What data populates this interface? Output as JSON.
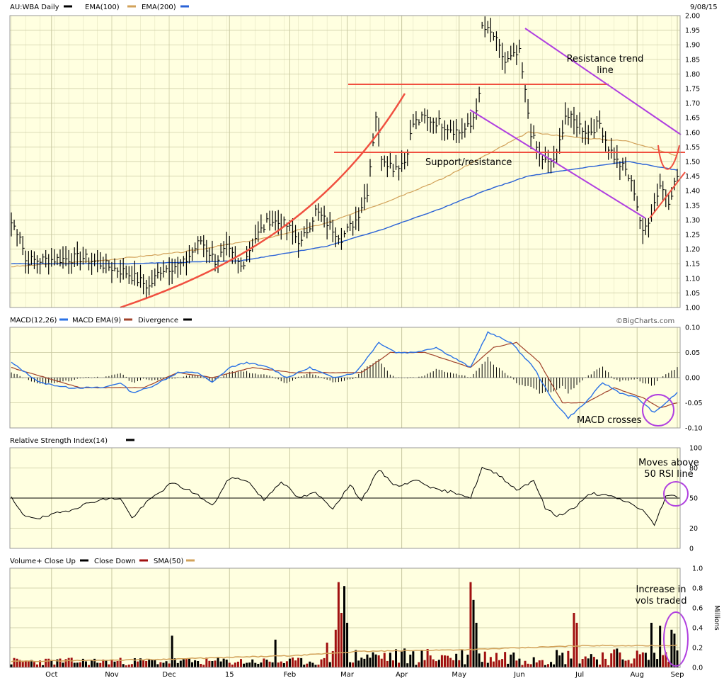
{
  "symbol_label": "AU:WBA Daily",
  "date_label": "9/08/15",
  "credit": "©BigCharts.com",
  "months": [
    "Oct",
    "Nov",
    "Dec",
    "15",
    "Feb",
    "Mar",
    "Apr",
    "May",
    "Jun",
    "Jul",
    "Aug",
    "Sep"
  ],
  "colors": {
    "panel_bg": "#ffffe0",
    "grid": "#c8c8a0",
    "price": "#000000",
    "ema100": "#d2a25a",
    "ema200": "#2a62d6",
    "macd": "#2a72e6",
    "macd_ema": "#a0422a",
    "vol_up": "#000000",
    "vol_down": "#a01010",
    "vol_sma": "#d2a25a",
    "annot_red": "#f05040",
    "annot_purple": "#b040e0"
  },
  "annotations": {
    "resistance": "Resistance trend line",
    "support": "Support/resistance",
    "macd": "MACD crosses",
    "rsi": "Moves above 50 RSI line",
    "volume": "Increase in vols traded"
  },
  "chart_data": [
    {
      "type": "line",
      "title": "AU:WBA Daily",
      "legend": [
        "AU:WBA Daily",
        "EMA(100)",
        "EMA(200)"
      ],
      "ylim": [
        1.0,
        2.0
      ],
      "y_ticks": [
        "2.00",
        "1.95",
        "1.90",
        "1.85",
        "1.80",
        "1.75",
        "1.70",
        "1.65",
        "1.60",
        "1.55",
        "1.50",
        "1.45",
        "1.40",
        "1.35",
        "1.30",
        "1.25",
        "1.20",
        "1.15",
        "1.10",
        "1.05",
        "1.00"
      ],
      "price_keypoints": [
        [
          0,
          1.29
        ],
        [
          3,
          1.25
        ],
        [
          5,
          1.16
        ],
        [
          25,
          1.17
        ],
        [
          40,
          1.12
        ],
        [
          48,
          1.07
        ],
        [
          52,
          1.13
        ],
        [
          60,
          1.15
        ],
        [
          66,
          1.23
        ],
        [
          71,
          1.16
        ],
        [
          75,
          1.2
        ],
        [
          80,
          1.14
        ],
        [
          85,
          1.24
        ],
        [
          90,
          1.3
        ],
        [
          96,
          1.28
        ],
        [
          101,
          1.22
        ],
        [
          106,
          1.33
        ],
        [
          111,
          1.28
        ],
        [
          115,
          1.24
        ],
        [
          120,
          1.3
        ],
        [
          124,
          1.4
        ],
        [
          127,
          1.66
        ],
        [
          129,
          1.52
        ],
        [
          133,
          1.48
        ],
        [
          137,
          1.5
        ],
        [
          140,
          1.63
        ],
        [
          144,
          1.65
        ],
        [
          150,
          1.63
        ],
        [
          156,
          1.6
        ],
        [
          160,
          1.62
        ],
        [
          163,
          1.72
        ],
        [
          164,
          1.96
        ],
        [
          168,
          1.93
        ],
        [
          172,
          1.84
        ],
        [
          177,
          1.87
        ],
        [
          181,
          1.6
        ],
        [
          184,
          1.52
        ],
        [
          187,
          1.49
        ],
        [
          190,
          1.52
        ],
        [
          193,
          1.66
        ],
        [
          197,
          1.63
        ],
        [
          201,
          1.6
        ],
        [
          205,
          1.63
        ],
        [
          208,
          1.55
        ],
        [
          211,
          1.5
        ],
        [
          214,
          1.47
        ],
        [
          217,
          1.4
        ],
        [
          220,
          1.25
        ],
        [
          223,
          1.33
        ],
        [
          226,
          1.42
        ],
        [
          229,
          1.37
        ],
        [
          232,
          1.45
        ]
      ],
      "ema100_keypoints": [
        [
          0,
          1.14
        ],
        [
          30,
          1.16
        ],
        [
          60,
          1.19
        ],
        [
          90,
          1.24
        ],
        [
          110,
          1.29
        ],
        [
          130,
          1.36
        ],
        [
          150,
          1.44
        ],
        [
          165,
          1.52
        ],
        [
          180,
          1.6
        ],
        [
          200,
          1.58
        ],
        [
          215,
          1.57
        ],
        [
          232,
          1.52
        ]
      ],
      "ema200_keypoints": [
        [
          0,
          1.15
        ],
        [
          40,
          1.15
        ],
        [
          80,
          1.16
        ],
        [
          110,
          1.21
        ],
        [
          130,
          1.27
        ],
        [
          150,
          1.34
        ],
        [
          165,
          1.4
        ],
        [
          180,
          1.45
        ],
        [
          200,
          1.48
        ],
        [
          215,
          1.5
        ],
        [
          232,
          1.47
        ]
      ]
    },
    {
      "type": "line",
      "title": "MACD(12,26)",
      "legend": [
        "MACD(12,26)",
        "MACD EMA(9)",
        "Divergence"
      ],
      "ylim": [
        -0.1,
        0.1
      ],
      "y_ticks": [
        "0.10",
        "0.05",
        "0.00",
        "-0.05",
        "-0.10"
      ],
      "macd_keypoints": [
        [
          0,
          0.03
        ],
        [
          10,
          -0.01
        ],
        [
          20,
          -0.02
        ],
        [
          32,
          -0.02
        ],
        [
          38,
          -0.01
        ],
        [
          42,
          -0.03
        ],
        [
          48,
          -0.02
        ],
        [
          58,
          0.01
        ],
        [
          65,
          0.01
        ],
        [
          70,
          -0.01
        ],
        [
          76,
          0.02
        ],
        [
          82,
          0.03
        ],
        [
          90,
          0.02
        ],
        [
          96,
          0.0
        ],
        [
          104,
          0.02
        ],
        [
          112,
          0.0
        ],
        [
          120,
          0.01
        ],
        [
          128,
          0.07
        ],
        [
          134,
          0.05
        ],
        [
          140,
          0.05
        ],
        [
          148,
          0.06
        ],
        [
          160,
          0.02
        ],
        [
          166,
          0.09
        ],
        [
          174,
          0.07
        ],
        [
          182,
          0.02
        ],
        [
          188,
          -0.04
        ],
        [
          194,
          -0.08
        ],
        [
          200,
          -0.05
        ],
        [
          206,
          -0.01
        ],
        [
          212,
          -0.03
        ],
        [
          218,
          -0.04
        ],
        [
          224,
          -0.07
        ],
        [
          228,
          -0.05
        ],
        [
          232,
          -0.03
        ]
      ],
      "macd_ema_keypoints": [
        [
          0,
          0.02
        ],
        [
          12,
          0.0
        ],
        [
          24,
          -0.02
        ],
        [
          36,
          -0.02
        ],
        [
          46,
          -0.02
        ],
        [
          58,
          0.01
        ],
        [
          70,
          0.0
        ],
        [
          84,
          0.02
        ],
        [
          98,
          0.01
        ],
        [
          112,
          0.01
        ],
        [
          122,
          0.01
        ],
        [
          132,
          0.05
        ],
        [
          144,
          0.05
        ],
        [
          160,
          0.02
        ],
        [
          168,
          0.06
        ],
        [
          176,
          0.07
        ],
        [
          184,
          0.03
        ],
        [
          192,
          -0.05
        ],
        [
          200,
          -0.05
        ],
        [
          210,
          -0.02
        ],
        [
          220,
          -0.04
        ],
        [
          226,
          -0.06
        ],
        [
          232,
          -0.05
        ]
      ]
    },
    {
      "type": "line",
      "title": "Relative Strength Index(14)",
      "legend": [
        "Relative Strength Index(14)"
      ],
      "ylim": [
        0,
        100
      ],
      "y_ticks": [
        "100",
        "80",
        "50",
        "20",
        "0"
      ],
      "rsi_keypoints": [
        [
          0,
          50
        ],
        [
          4,
          33
        ],
        [
          10,
          30
        ],
        [
          20,
          38
        ],
        [
          30,
          48
        ],
        [
          38,
          50
        ],
        [
          42,
          30
        ],
        [
          48,
          48
        ],
        [
          56,
          65
        ],
        [
          64,
          55
        ],
        [
          70,
          42
        ],
        [
          76,
          70
        ],
        [
          82,
          68
        ],
        [
          88,
          48
        ],
        [
          94,
          67
        ],
        [
          100,
          50
        ],
        [
          106,
          55
        ],
        [
          112,
          40
        ],
        [
          118,
          63
        ],
        [
          122,
          48
        ],
        [
          128,
          78
        ],
        [
          134,
          62
        ],
        [
          142,
          68
        ],
        [
          148,
          58
        ],
        [
          156,
          55
        ],
        [
          160,
          50
        ],
        [
          164,
          80
        ],
        [
          170,
          73
        ],
        [
          176,
          58
        ],
        [
          182,
          68
        ],
        [
          186,
          40
        ],
        [
          190,
          32
        ],
        [
          196,
          40
        ],
        [
          202,
          55
        ],
        [
          208,
          52
        ],
        [
          214,
          47
        ],
        [
          220,
          38
        ],
        [
          224,
          23
        ],
        [
          228,
          52
        ],
        [
          232,
          52
        ]
      ]
    },
    {
      "type": "bar",
      "title": "Volume+ Close Up",
      "legend": [
        "Volume+ Close Up",
        "Close Down",
        "SMA(50)"
      ],
      "ylabel": "Millions",
      "ylim": [
        0,
        1.0
      ],
      "y_ticks": [
        "1.0",
        "0.8",
        "0.6",
        "0.4",
        "0.2",
        "0.0"
      ],
      "volume_spikes": [
        [
          56,
          0.32
        ],
        [
          92,
          0.28
        ],
        [
          110,
          0.25
        ],
        [
          113,
          0.38
        ],
        [
          114,
          0.86
        ],
        [
          115,
          0.55
        ],
        [
          116,
          0.82
        ],
        [
          117,
          0.45
        ],
        [
          160,
          0.86
        ],
        [
          161,
          0.68
        ],
        [
          162,
          0.45
        ],
        [
          196,
          0.55
        ],
        [
          197,
          0.45
        ],
        [
          223,
          0.45
        ],
        [
          226,
          0.42
        ],
        [
          230,
          0.38
        ],
        [
          231,
          0.34
        ]
      ],
      "sma_keypoints": [
        [
          0,
          0.06
        ],
        [
          50,
          0.08
        ],
        [
          100,
          0.12
        ],
        [
          120,
          0.16
        ],
        [
          160,
          0.18
        ],
        [
          200,
          0.22
        ],
        [
          232,
          0.22
        ]
      ]
    }
  ]
}
